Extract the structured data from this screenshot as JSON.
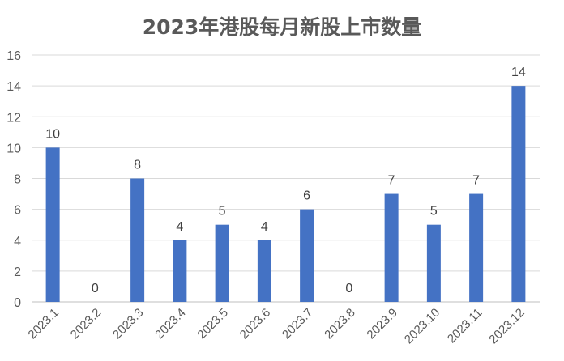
{
  "chart_data": {
    "type": "bar",
    "title": "2023年港股每月新股上市数量",
    "categories": [
      "2023.1",
      "2023.2",
      "2023.3",
      "2023.4",
      "2023.5",
      "2023.6",
      "2023.7",
      "2023.8",
      "2023.9",
      "2023.10",
      "2023.11",
      "2023.12"
    ],
    "values": [
      10,
      0,
      8,
      4,
      5,
      4,
      6,
      0,
      7,
      5,
      7,
      14
    ],
    "ylim": [
      0,
      16
    ],
    "yticks": [
      0,
      2,
      4,
      6,
      8,
      10,
      12,
      14,
      16
    ],
    "grid": true,
    "bar_color": "#4472C4",
    "xlabel": "",
    "ylabel": ""
  }
}
